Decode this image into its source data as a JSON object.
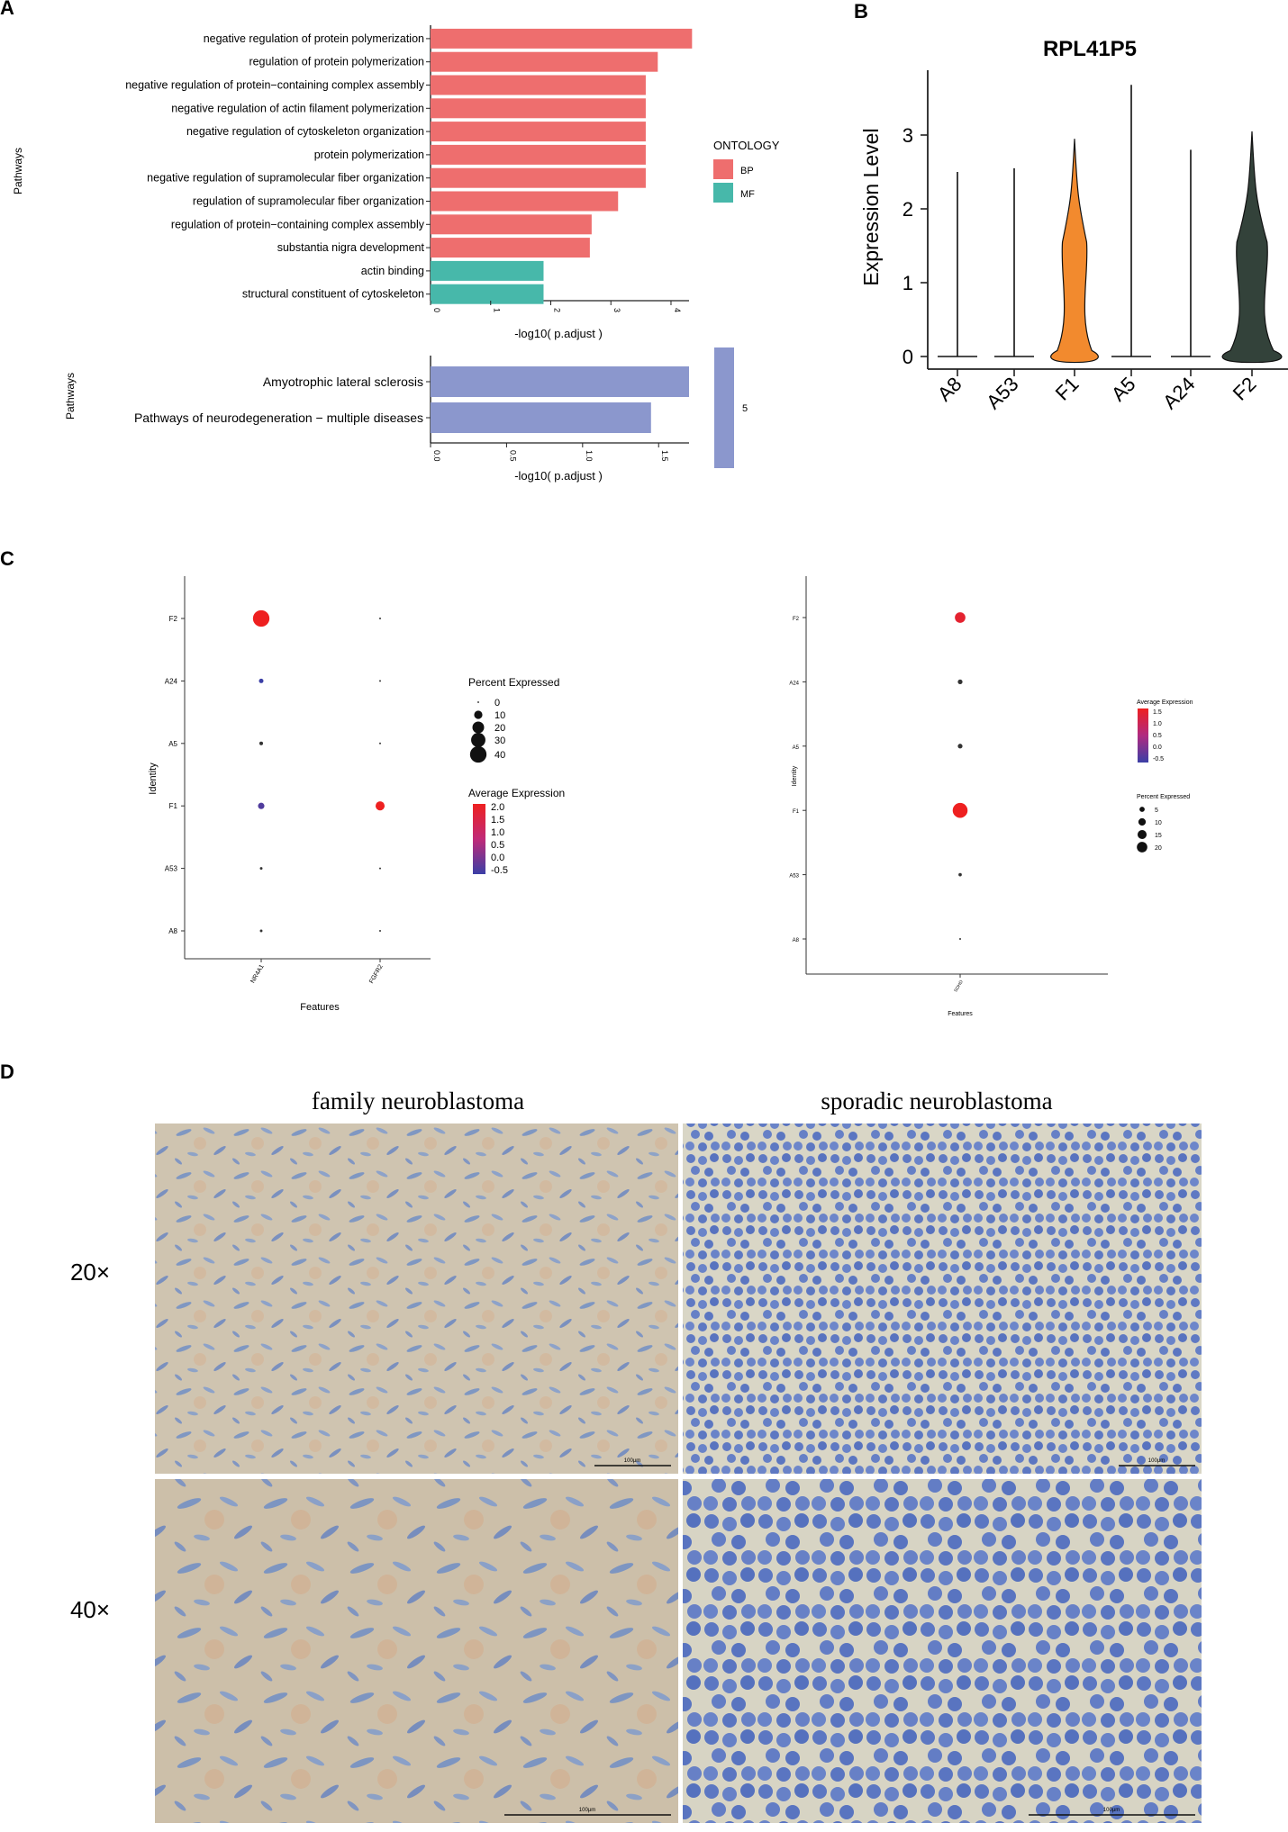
{
  "panels": {
    "a": "A",
    "b": "B",
    "c": "C",
    "d": "D"
  },
  "colors": {
    "bp": "#ee6e6e",
    "mf": "#47b8aa",
    "kegg": "#8b97cd",
    "f1_violin": "#f28a2e",
    "f2_violin": "#33423a",
    "avg_high": "#ee2020",
    "avg_mid": "#b82a6a",
    "avg_low": "#3b3fa6"
  },
  "panel_a": {
    "go": {
      "ylabel": "Pathways",
      "xlabel": "-log10( p.adjust )",
      "legend_title": "ONTOLOGY",
      "legend_items": [
        {
          "label": "BP",
          "color": "#ee6e6e"
        },
        {
          "label": "MF",
          "color": "#47b8aa"
        }
      ]
    },
    "kegg": {
      "ylabel": "Pathways",
      "xlabel": "-log10( p.adjust )",
      "legend_value": "5"
    }
  },
  "panel_b": {
    "title": "RPL41P5",
    "ylabel": "Expression Level"
  },
  "panel_c": {
    "left": {
      "ylabel": "Identity",
      "xlabel": "Features",
      "pct_title": "Percent Expressed",
      "pct_levels": [
        "0",
        "10",
        "20",
        "30",
        "40"
      ],
      "avg_title": "Average Expression",
      "avg_ticks": [
        "2.0",
        "1.5",
        "1.0",
        "0.5",
        "0.0",
        "-0.5"
      ]
    },
    "right": {
      "ylabel": "Identity",
      "xlabel": "Features",
      "avg_title": "Average Expression",
      "avg_ticks": [
        "1.5",
        "1.0",
        "0.5",
        "0.0",
        "-0.5"
      ],
      "pct_title": "Percent Expressed",
      "pct_levels": [
        "5",
        "10",
        "15",
        "20"
      ]
    }
  },
  "panel_d": {
    "col_left": "family neuroblastoma",
    "col_right": "sporadic neuroblastoma",
    "row_top": "20×",
    "row_bottom": "40×",
    "scale_20": "100μm",
    "scale_40": "100μm"
  },
  "chart_data": [
    {
      "type": "bar",
      "id": "A-GO",
      "orientation": "horizontal",
      "ylabel": "Pathways",
      "xlabel": "-log10( p.adjust )",
      "xlim": [
        0,
        4.3
      ],
      "xticks": [
        0,
        1,
        2,
        3,
        4
      ],
      "legend_title": "ONTOLOGY",
      "legend_position": "right",
      "categories": [
        "negative regulation of protein polymerization",
        "regulation of protein polymerization",
        "negative regulation of protein−containing complex assembly",
        "negative regulation of actin filament polymerization",
        "negative regulation of cytoskeleton organization",
        "protein polymerization",
        "negative regulation of supramolecular fiber organization",
        "regulation of supramolecular fiber organization",
        "regulation of protein−containing complex assembly",
        "substantia nigra development",
        "actin binding",
        "structural constituent of cytoskeleton"
      ],
      "values": [
        4.35,
        3.78,
        3.58,
        3.58,
        3.58,
        3.58,
        3.58,
        3.12,
        2.68,
        2.65,
        1.88,
        1.88
      ],
      "groups": [
        "BP",
        "BP",
        "BP",
        "BP",
        "BP",
        "BP",
        "BP",
        "BP",
        "BP",
        "BP",
        "MF",
        "MF"
      ]
    },
    {
      "type": "bar",
      "id": "A-KEGG",
      "orientation": "horizontal",
      "ylabel": "Pathways",
      "xlabel": "-log10( p.adjust )",
      "xlim": [
        0,
        1.7
      ],
      "xticks": [
        0.0,
        0.5,
        1.0,
        1.5
      ],
      "categories": [
        "Amyotrophic lateral sclerosis",
        "Pathways of neurodegeneration − multiple diseases"
      ],
      "values": [
        1.7,
        1.45
      ]
    },
    {
      "type": "violin",
      "id": "B",
      "title": "RPL41P5",
      "ylabel": "Expression Level",
      "ylim": [
        -0.2,
        3.7
      ],
      "yticks": [
        0,
        1,
        2,
        3
      ],
      "categories": [
        "A8",
        "A53",
        "F1",
        "A5",
        "A24",
        "F2"
      ],
      "max_values": [
        2.5,
        2.55,
        2.95,
        3.68,
        2.8,
        3.05
      ]
    },
    {
      "type": "scatter",
      "id": "C-left",
      "ylabel": "Identity",
      "xlabel": "Features",
      "identities": [
        "A8",
        "A53",
        "F1",
        "A5",
        "A24",
        "F2"
      ],
      "features": [
        "NR4A1",
        "FGFR2"
      ],
      "points": [
        {
          "feature": "NR4A1",
          "identity": "F2",
          "pct": 40,
          "avg": 2.0
        },
        {
          "feature": "NR4A1",
          "identity": "A24",
          "pct": 3,
          "avg": -0.5
        },
        {
          "feature": "NR4A1",
          "identity": "A5",
          "pct": 2,
          "avg": -0.4
        },
        {
          "feature": "NR4A1",
          "identity": "F1",
          "pct": 6,
          "avg": -0.3
        },
        {
          "feature": "NR4A1",
          "identity": "A53",
          "pct": 1,
          "avg": -0.4
        },
        {
          "feature": "NR4A1",
          "identity": "A8",
          "pct": 1,
          "avg": -0.4
        },
        {
          "feature": "FGFR2",
          "identity": "F2",
          "pct": 0,
          "avg": -0.4
        },
        {
          "feature": "FGFR2",
          "identity": "A24",
          "pct": 0,
          "avg": -0.4
        },
        {
          "feature": "FGFR2",
          "identity": "A5",
          "pct": 0,
          "avg": -0.4
        },
        {
          "feature": "FGFR2",
          "identity": "F1",
          "pct": 12,
          "avg": 2.0
        },
        {
          "feature": "FGFR2",
          "identity": "A53",
          "pct": 0,
          "avg": -0.4
        },
        {
          "feature": "FGFR2",
          "identity": "A8",
          "pct": 0,
          "avg": -0.4
        }
      ]
    },
    {
      "type": "scatter",
      "id": "C-right",
      "ylabel": "Identity",
      "xlabel": "Features",
      "identities": [
        "A8",
        "A53",
        "F1",
        "A5",
        "A24",
        "F2"
      ],
      "features": [
        "SDHD"
      ],
      "points": [
        {
          "feature": "SDHD",
          "identity": "F2",
          "pct": 10,
          "avg": 1.3
        },
        {
          "feature": "SDHD",
          "identity": "A24",
          "pct": 2,
          "avg": -0.5
        },
        {
          "feature": "SDHD",
          "identity": "A5",
          "pct": 2,
          "avg": -0.5
        },
        {
          "feature": "SDHD",
          "identity": "F1",
          "pct": 20,
          "avg": 1.5
        },
        {
          "feature": "SDHD",
          "identity": "A53",
          "pct": 1,
          "avg": -0.5
        },
        {
          "feature": "SDHD",
          "identity": "A8",
          "pct": 0,
          "avg": -0.5
        }
      ]
    }
  ]
}
